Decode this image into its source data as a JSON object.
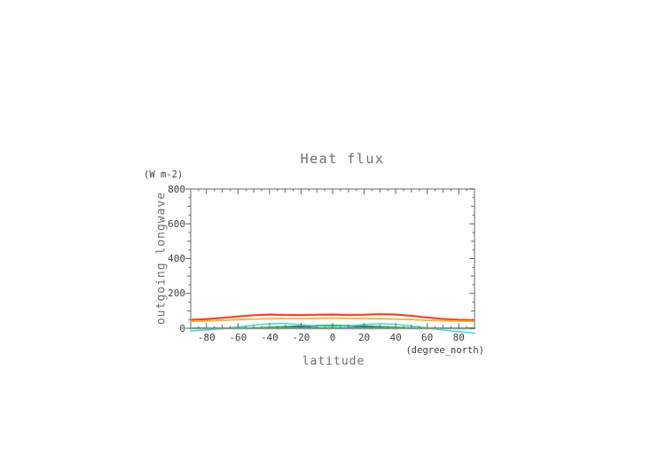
{
  "page": {
    "background_color": "#ffffff"
  },
  "chart_data": {
    "type": "line",
    "title": "Heat flux",
    "title_color": "#6e6e6e",
    "ylabel": "outgoing longwave",
    "y_unit_label": "(W m-2)",
    "xlabel": "latitude",
    "x_unit_label": "(degree_north)",
    "xlim": [
      -90,
      90
    ],
    "ylim": [
      0,
      800
    ],
    "grid": false,
    "legend": "none",
    "frame_color": "#a0a0a0",
    "tick_color": "#666666",
    "x_major_ticks": [
      -80,
      -60,
      -40,
      -20,
      0,
      20,
      40,
      60,
      80
    ],
    "x_tick_labels": [
      "-80",
      "-60",
      "-40",
      "-20",
      "0",
      "20",
      "40",
      "60",
      "80"
    ],
    "x_minor_step": 5,
    "y_major_ticks": [
      0,
      200,
      400,
      600,
      800
    ],
    "y_tick_labels": [
      "0",
      "200",
      "400",
      "600",
      "800"
    ],
    "y_minor_step": 50,
    "x": [
      -90,
      -80,
      -70,
      -60,
      -50,
      -40,
      -30,
      -20,
      -10,
      0,
      10,
      20,
      30,
      40,
      50,
      60,
      70,
      80,
      90
    ],
    "series": [
      {
        "name": "navy",
        "color": "#3b3ba0",
        "width": 1.5,
        "values": [
          0,
          0,
          0,
          0,
          1,
          3,
          6,
          9,
          11,
          12,
          11,
          9,
          6,
          3,
          1,
          0,
          0,
          0,
          0
        ]
      },
      {
        "name": "green",
        "color": "#2fb44b",
        "width": 1.5,
        "values": [
          1,
          1,
          1,
          2,
          3,
          6,
          10,
          14,
          17,
          18,
          17,
          14,
          10,
          6,
          3,
          2,
          1,
          1,
          1
        ]
      },
      {
        "name": "cyan",
        "color": "#44e0e0",
        "width": 1.6,
        "values": [
          -16,
          -10,
          -2,
          8,
          18,
          26,
          27,
          21,
          13,
          9,
          14,
          22,
          26,
          23,
          14,
          2,
          -10,
          -20,
          -27
        ]
      },
      {
        "name": "dark-green",
        "color": "#0c8f48",
        "width": 2.2,
        "values": [
          0,
          0,
          0,
          0,
          0,
          0,
          0,
          0,
          0,
          0,
          0,
          0,
          0,
          0,
          0,
          0,
          0,
          0,
          0
        ]
      },
      {
        "name": "salmon",
        "color": "#fb8f7c",
        "width": 1.6,
        "values": [
          51,
          55,
          62,
          70,
          77,
          81,
          79,
          78,
          80,
          81,
          79,
          80,
          83,
          81,
          74,
          64,
          56,
          51,
          49
        ]
      },
      {
        "name": "red",
        "color": "#ef3b2f",
        "width": 1.8,
        "values": [
          48,
          52,
          59,
          67,
          74,
          78,
          76,
          75,
          77,
          78,
          76,
          77,
          80,
          78,
          71,
          61,
          53,
          48,
          46
        ]
      },
      {
        "name": "orange",
        "color": "#ffb02e",
        "width": 1.8,
        "values": [
          40,
          42,
          46,
          50,
          53,
          55,
          56,
          56,
          57,
          58,
          57,
          56,
          55,
          53,
          50,
          46,
          43,
          41,
          39
        ]
      }
    ]
  }
}
